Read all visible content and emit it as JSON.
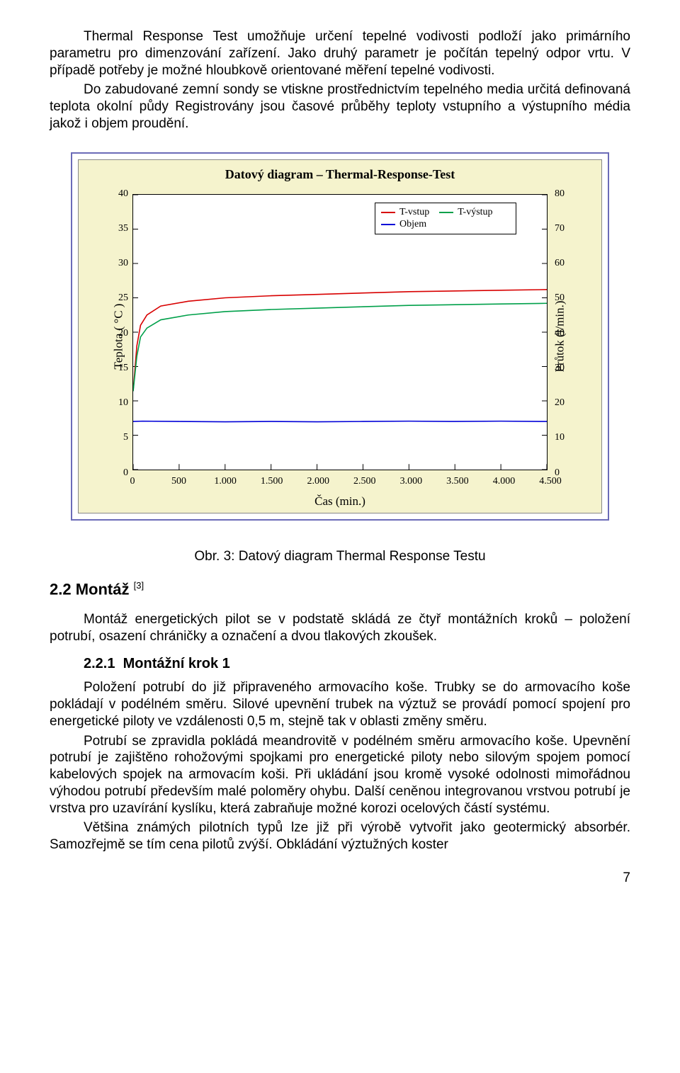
{
  "paragraphs": {
    "p1": "Thermal Response Test umožňuje určení tepelné vodivosti podloží jako primárního parametru pro dimenzování zařízení. Jako druhý parametr je počítán tepelný odpor vrtu. V případě potřeby je možné hloubkově orientované měření tepelné vodivosti.",
    "p2": "Do zabudované zemní sondy se vtiskne prostřednictvím tepelného media určitá definovaná teplota okolní půdy Registrovány jsou časové průběhy teploty vstupního a výstupního média jakož i objem proudění."
  },
  "chart": {
    "title": "Datový diagram – Thermal-Response-Test",
    "type": "line",
    "background_color": "#f5f3cd",
    "plot_background": "#ffffff",
    "border_color": "#6b6bb8",
    "x_label": "Čas (min.)",
    "y_label_left": "Teplota ( °C )",
    "y_label_right": "Průtok (l/min.)",
    "xlim": [
      0,
      4500
    ],
    "ylim_left": [
      0,
      40
    ],
    "ylim_right": [
      0,
      80
    ],
    "xtick_step": 500,
    "ytick_left_step": 5,
    "ytick_right_step": 10,
    "xticks": [
      "0",
      "500",
      "1.000",
      "1.500",
      "2.000",
      "2.500",
      "3.000",
      "3.500",
      "4.000",
      "4.500"
    ],
    "yticks_left": [
      "0",
      "5",
      "10",
      "15",
      "20",
      "25",
      "30",
      "35",
      "40"
    ],
    "yticks_right": [
      "0",
      "10",
      "20",
      "30",
      "40",
      "50",
      "60",
      "70",
      "80"
    ],
    "grid": false,
    "label_fontsize": 17,
    "tick_fontsize": 14,
    "title_fontsize": 18,
    "line_width": 1.6,
    "legend": {
      "position": "top-right-inside",
      "items": [
        {
          "label": "T-vstup",
          "color": "#d80000"
        },
        {
          "label": "T-výstup",
          "color": "#00a04a"
        },
        {
          "label": "Objem",
          "color": "#0000d8"
        }
      ]
    },
    "series": [
      {
        "name": "T-vstup",
        "color": "#d80000",
        "axis": "left",
        "data": [
          [
            0,
            11.5
          ],
          [
            40,
            18
          ],
          [
            80,
            21
          ],
          [
            150,
            22.5
          ],
          [
            300,
            23.8
          ],
          [
            600,
            24.5
          ],
          [
            1000,
            25.0
          ],
          [
            1500,
            25.3
          ],
          [
            2000,
            25.5
          ],
          [
            2500,
            25.7
          ],
          [
            3000,
            25.9
          ],
          [
            3500,
            26.0
          ],
          [
            4000,
            26.1
          ],
          [
            4500,
            26.2
          ]
        ]
      },
      {
        "name": "T-výstup",
        "color": "#00a04a",
        "axis": "left",
        "data": [
          [
            0,
            11.4
          ],
          [
            40,
            16.5
          ],
          [
            80,
            19.3
          ],
          [
            150,
            20.6
          ],
          [
            300,
            21.8
          ],
          [
            600,
            22.5
          ],
          [
            1000,
            23.0
          ],
          [
            1500,
            23.3
          ],
          [
            2000,
            23.5
          ],
          [
            2500,
            23.7
          ],
          [
            3000,
            23.9
          ],
          [
            3500,
            24.0
          ],
          [
            4000,
            24.1
          ],
          [
            4500,
            24.2
          ]
        ]
      },
      {
        "name": "Objem",
        "color": "#0000d8",
        "axis": "right",
        "data": [
          [
            0,
            14.0
          ],
          [
            100,
            14.1
          ],
          [
            500,
            14.0
          ],
          [
            1000,
            13.9
          ],
          [
            1500,
            14.0
          ],
          [
            2000,
            13.9
          ],
          [
            2500,
            14.0
          ],
          [
            3000,
            14.1
          ],
          [
            3500,
            14.0
          ],
          [
            4000,
            14.1
          ],
          [
            4500,
            14.0
          ]
        ]
      }
    ]
  },
  "caption": "Obr. 3: Datový diagram Thermal Response Testu",
  "sections": {
    "s22_number": "2.2",
    "s22_title": "Montáž",
    "s22_ref": "[3]",
    "s22_para": "Montáž energetických pilot se v podstatě skládá ze čtyř montážních kroků – položení potrubí, osazení chráničky a označení a dvou tlakových zkoušek.",
    "s221_number": "2.2.1",
    "s221_title": "Montážní krok 1",
    "s221_p1": "Položení potrubí do již připraveného armovacího koše. Trubky se do armovacího koše pokládají v podélném směru. Silové upevnění trubek na výztuž se provádí pomocí spojení pro energetické piloty ve vzdálenosti 0,5 m, stejně tak v oblasti změny směru.",
    "s221_p2": "Potrubí se zpravidla pokládá meandrovitě v podélném směru armovacího koše. Upevnění potrubí je zajištěno rohožovými spojkami pro energetické piloty nebo silovým spojem pomocí kabelových spojek na armovacím koši. Při ukládání jsou kromě vysoké odolnosti mimořádnou výhodou potrubí především malé poloměry ohybu. Další ceněnou integrovanou vrstvou potrubí je vrstva pro uzavírání kyslíku, která zabraňuje možné korozi ocelových částí systému.",
    "s221_p3": "Většina známých pilotních typů lze již při výrobě vytvořit jako geotermický absorbér. Samozřejmě se tím cena pilotů zvýší. Obkládání výztužných koster"
  },
  "page_number": "7"
}
